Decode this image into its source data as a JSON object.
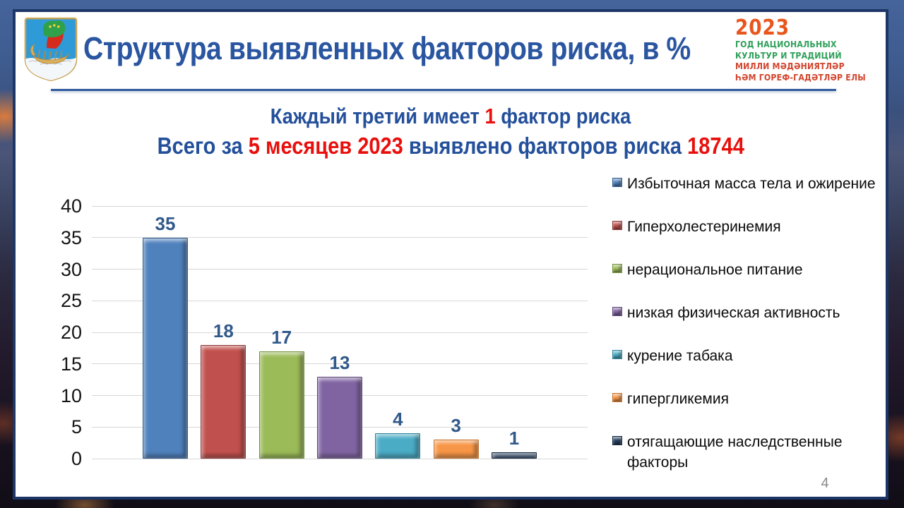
{
  "slide": {
    "title": "Структура выявленных факторов риска, в %",
    "title_color": "#2A55A0",
    "accent_blue": "#24509B",
    "accent_red": "#E8100C",
    "subtitle1": {
      "pre": "Каждый третий имеет ",
      "highlight": "1",
      "post": " фактор риска"
    },
    "subtitle2": {
      "pre": "Всего за ",
      "highlight1": "5 месяцев 2023",
      "mid": " выявлено факторов риска ",
      "highlight2": "18744"
    },
    "page_number": "4"
  },
  "logo2023": {
    "year": "2023",
    "year_color": "#E8561E",
    "green": "#2FA05A",
    "red": "#D2452E",
    "lines_green": [
      "ГОД НАЦИОНАЛЬНЫХ",
      "КУЛЬТУР И ТРАДИЦИЙ"
    ],
    "lines_red": [
      "МИЛЛИ МӘДӘНИЯТЛӘР",
      "ҺӘМ ГОРЕФ-ГАДӘТЛӘР ЕЛЫ"
    ]
  },
  "chart_data": {
    "type": "bar",
    "title": "",
    "xlabel": "",
    "ylabel": "",
    "categories": [
      "Избыточная масса тела и ожирение",
      "Гиперхолестеринемия",
      "нерациональное питание",
      "низкая физическая активность",
      "курение табака",
      "гипергликемия",
      "отягащающие наследственные факторы"
    ],
    "values": [
      35,
      18,
      17,
      13,
      4,
      3,
      1
    ],
    "colors": [
      "#4F81BD",
      "#C0504D",
      "#9BBB59",
      "#8064A2",
      "#4BACC6",
      "#F79646",
      "#254061"
    ],
    "strokes": [
      "#2F5A8C",
      "#8E3A38",
      "#70903C",
      "#5C4776",
      "#31849B",
      "#C5722E",
      "#15293F"
    ],
    "ylim": [
      0,
      40
    ],
    "yticks": [
      0,
      5,
      10,
      15,
      20,
      25,
      30,
      35,
      40
    ],
    "grid": true,
    "legend_position": "right",
    "value_label_color": "#31598A"
  }
}
